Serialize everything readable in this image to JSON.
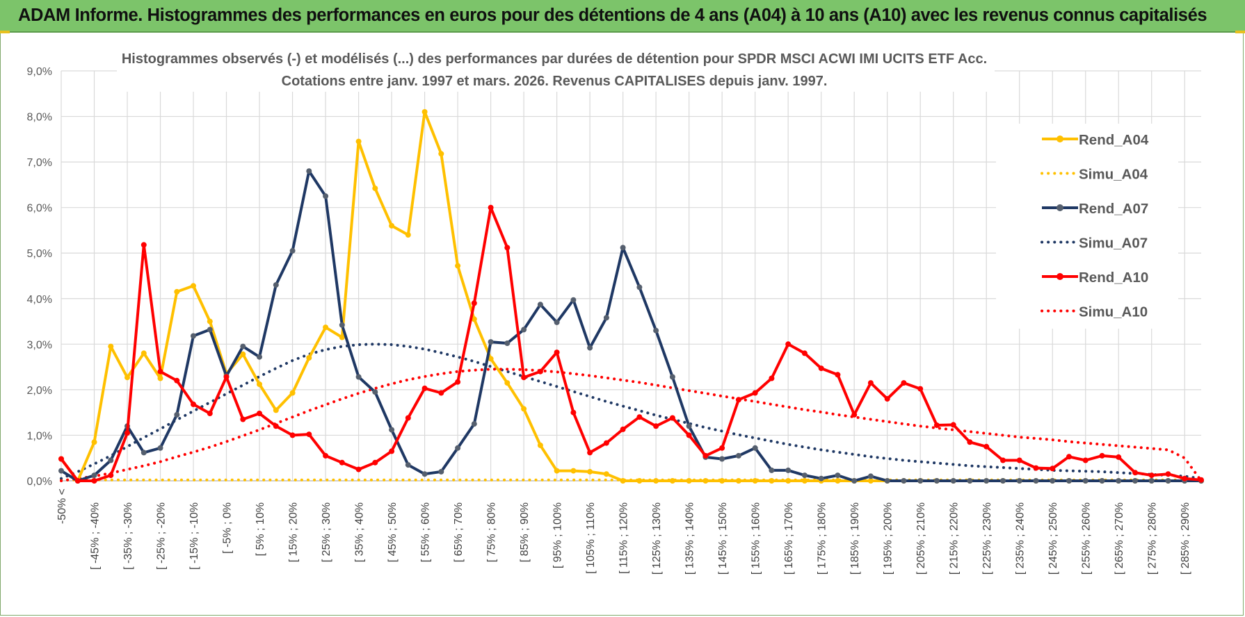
{
  "header": {
    "title": "ADAM Informe. Histogrammes des performances en euros pour des détentions de 4 ans (A04) à 10 ans (A10) avec les revenus connus capitalisés"
  },
  "colors": {
    "banner": "#7cc46a",
    "a04": "#ffc000",
    "a07": "#1f3864",
    "a10": "#ff0000",
    "marker_a07": "#555f6e"
  },
  "chart_data": {
    "type": "line",
    "title": "Histogrammes observés (-) et modélisés (...) des performances par durées de détention pour SPDR MSCI ACWI IMI UCITS ETF Acc.",
    "subtitle": "Cotations entre janv. 1997 et mars. 2026.  Revenus CAPITALISES depuis janv. 1997.",
    "xlabel": "",
    "ylabel": "",
    "ylim": [
      0,
      9
    ],
    "y_ticks": [
      "0,0%",
      "1,0%",
      "2,0%",
      "3,0%",
      "4,0%",
      "5,0%",
      "6,0%",
      "7,0%",
      "8,0%",
      "9,0%"
    ],
    "grid": true,
    "legend_position": "right",
    "x_tick_labels": [
      "-50% <",
      "[ -45% ; -40%",
      "[ -35% ; -30%",
      "[ -25% ; -20%",
      "[ -15% ; -10%",
      "[ -5% ; 0%",
      "[ 5% ; 10%",
      "[ 15% ; 20%",
      "[ 25% ; 30%",
      "[ 35% ; 40%",
      "[ 45% ; 50%",
      "[ 55% ; 60%",
      "[ 65% ; 70%",
      "[ 75% ; 80%",
      "[ 85% ; 90%",
      "[ 95% ; 100%",
      "[ 105% ; 110%",
      "[ 115% ; 120%",
      "[ 125% ; 130%",
      "[ 135% ; 140%",
      "[ 145% ; 150%",
      "[ 155% ; 160%",
      "[ 165% ; 170%",
      "[ 175% ; 180%",
      "[ 185% ; 190%",
      "[ 195% ; 200%",
      "[ 205% ; 210%",
      "[ 215% ; 220%",
      "[ 225% ; 230%",
      "[ 235% ; 240%",
      "[ 245% ; 250%",
      "[ 255% ; 260%",
      "[ 265% ; 270%",
      "[ 275% ; 280%",
      "[ 285% ; 290%"
    ],
    "series": [
      {
        "name": "Rend_A04",
        "style": "solid",
        "color": "#ffc000",
        "values": [
          0.48,
          0.0,
          0.85,
          2.95,
          2.27,
          2.8,
          2.25,
          4.15,
          4.28,
          3.5,
          2.35,
          2.78,
          2.12,
          1.55,
          1.93,
          2.7,
          3.37,
          3.15,
          7.45,
          6.42,
          5.6,
          5.4,
          8.1,
          7.18,
          4.72,
          3.55,
          2.68,
          2.15,
          1.58,
          0.78,
          0.22,
          0.22,
          0.2,
          0.15,
          0.0,
          0.0,
          0.0,
          0.0,
          0.0,
          0.0,
          0.0,
          0.0,
          0.0,
          0.0,
          0.0,
          0.0,
          0.0,
          0.0,
          0.0,
          0.0,
          0.0,
          0.0,
          0.0,
          0.0,
          0.0,
          0.0,
          0.0,
          0.0,
          0.0,
          0.0,
          0.0,
          0.0,
          0.0,
          0.0,
          0.0,
          0.0,
          0.0,
          0.0,
          0.0,
          0.0
        ]
      },
      {
        "name": "Simu_A04",
        "style": "dotted",
        "color": "#ffc000",
        "values": [
          0.02,
          0.02,
          0.02,
          0.02,
          0.02,
          0.02,
          0.02,
          0.02,
          0.02,
          0.02,
          0.02,
          0.02,
          0.02,
          0.02,
          0.02,
          0.02,
          0.02,
          0.02,
          0.02,
          0.02,
          0.02,
          0.02,
          0.02,
          0.02,
          0.02,
          0.02,
          0.02,
          0.02,
          0.02,
          0.02,
          0.02,
          0.02,
          0.02,
          0.02,
          0.02,
          0.02,
          0.02,
          0.02,
          0.02,
          0.02,
          0.02,
          0.02,
          0.02,
          0.02,
          0.02,
          0.02,
          0.02,
          0.02,
          0.02,
          0.02,
          0.02,
          0.02,
          0.02,
          0.02,
          0.02,
          0.02,
          0.02,
          0.02,
          0.02,
          0.02,
          0.02,
          0.02,
          0.02,
          0.02,
          0.02,
          0.02,
          0.02,
          0.02,
          0.02,
          0.02
        ]
      },
      {
        "name": "Rend_A07",
        "style": "solid",
        "color": "#1f3864",
        "values": [
          0.22,
          0.0,
          0.12,
          0.45,
          1.2,
          0.62,
          0.72,
          1.45,
          3.18,
          3.32,
          2.3,
          2.95,
          2.72,
          4.3,
          5.05,
          6.8,
          6.25,
          3.42,
          2.28,
          1.95,
          1.12,
          0.35,
          0.15,
          0.2,
          0.72,
          1.25,
          3.05,
          3.02,
          3.32,
          3.87,
          3.48,
          3.97,
          2.92,
          3.58,
          5.12,
          4.25,
          3.3,
          2.28,
          1.2,
          0.52,
          0.48,
          0.55,
          0.72,
          0.23,
          0.23,
          0.12,
          0.05,
          0.12,
          0.0,
          0.1,
          0.0,
          0.0,
          0.0,
          0.0,
          0.0,
          0.0,
          0.0,
          0.0,
          0.0,
          0.0,
          0.0,
          0.0,
          0.0,
          0.0,
          0.0,
          0.0,
          0.0,
          0.0,
          0.0,
          0.0
        ]
      },
      {
        "name": "Simu_A07",
        "style": "dotted",
        "color": "#1f3864",
        "values": [
          0.05,
          0.2,
          0.37,
          0.55,
          0.75,
          0.95,
          1.14,
          1.34,
          1.53,
          1.72,
          1.91,
          2.1,
          2.29,
          2.47,
          2.64,
          2.78,
          2.88,
          2.95,
          2.99,
          3.0,
          2.99,
          2.95,
          2.89,
          2.81,
          2.72,
          2.62,
          2.51,
          2.4,
          2.29,
          2.18,
          2.07,
          1.96,
          1.85,
          1.74,
          1.64,
          1.54,
          1.44,
          1.35,
          1.26,
          1.17,
          1.09,
          1.01,
          0.94,
          0.87,
          0.8,
          0.74,
          0.68,
          0.63,
          0.58,
          0.53,
          0.49,
          0.45,
          0.42,
          0.39,
          0.36,
          0.33,
          0.31,
          0.29,
          0.27,
          0.25,
          0.23,
          0.22,
          0.21,
          0.2,
          0.18,
          0.16,
          0.14,
          0.12,
          0.1,
          0.05
        ]
      },
      {
        "name": "Rend_A10",
        "style": "solid",
        "color": "#ff0000",
        "values": [
          0.48,
          0.0,
          0.0,
          0.12,
          1.05,
          5.18,
          2.4,
          2.2,
          1.68,
          1.48,
          2.28,
          1.35,
          1.48,
          1.2,
          1.0,
          1.02,
          0.55,
          0.4,
          0.25,
          0.4,
          0.65,
          1.38,
          2.03,
          1.93,
          2.17,
          3.9,
          6.0,
          5.12,
          2.27,
          2.4,
          2.82,
          1.5,
          0.62,
          0.83,
          1.13,
          1.4,
          1.2,
          1.38,
          1.0,
          0.55,
          0.72,
          1.78,
          1.93,
          2.25,
          3.0,
          2.8,
          2.47,
          2.33,
          1.45,
          2.15,
          1.8,
          2.15,
          2.02,
          1.22,
          1.23,
          0.85,
          0.75,
          0.45,
          0.45,
          0.28,
          0.27,
          0.53,
          0.45,
          0.55,
          0.52,
          0.18,
          0.12,
          0.15,
          0.05,
          0.02
        ]
      },
      {
        "name": "Simu_A10",
        "style": "dotted",
        "color": "#ff0000",
        "values": [
          0.0,
          0.05,
          0.1,
          0.17,
          0.25,
          0.33,
          0.42,
          0.53,
          0.63,
          0.74,
          0.86,
          0.99,
          1.12,
          1.26,
          1.4,
          1.54,
          1.67,
          1.8,
          1.92,
          2.03,
          2.13,
          2.22,
          2.29,
          2.35,
          2.4,
          2.43,
          2.45,
          2.45,
          2.44,
          2.42,
          2.39,
          2.35,
          2.31,
          2.26,
          2.21,
          2.16,
          2.1,
          2.04,
          1.98,
          1.92,
          1.86,
          1.8,
          1.74,
          1.68,
          1.62,
          1.56,
          1.51,
          1.45,
          1.4,
          1.35,
          1.3,
          1.25,
          1.2,
          1.16,
          1.12,
          1.08,
          1.04,
          1.0,
          0.96,
          0.93,
          0.9,
          0.86,
          0.83,
          0.8,
          0.77,
          0.74,
          0.71,
          0.68,
          0.5,
          0.0
        ]
      }
    ]
  }
}
